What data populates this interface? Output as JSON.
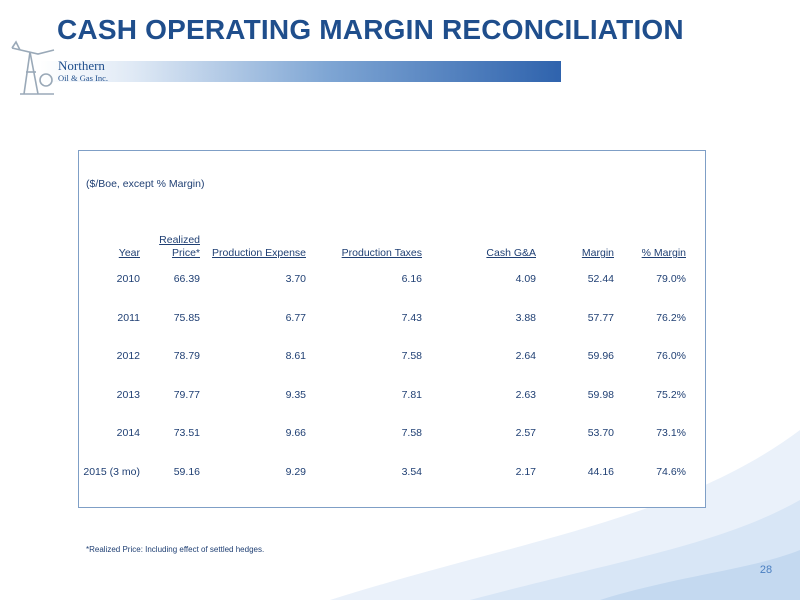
{
  "title": "CASH OPERATING MARGIN RECONCILIATION",
  "logo": {
    "name_line": "Northern",
    "sub_line": "Oil & Gas Inc."
  },
  "units_note": "($/Boe, except % Margin)",
  "table": {
    "headers": [
      "Year",
      "Realized",
      "Price*",
      "Production Expense",
      "Production Taxes",
      "Cash G&A",
      "Margin",
      "% Margin"
    ],
    "rows": [
      [
        "2010",
        "66.39",
        "3.70",
        "6.16",
        "4.09",
        "52.44",
        "79.0%"
      ],
      [
        "2011",
        "75.85",
        "6.77",
        "7.43",
        "3.88",
        "57.77",
        "76.2%"
      ],
      [
        "2012",
        "78.79",
        "8.61",
        "7.58",
        "2.64",
        "59.96",
        "76.0%"
      ],
      [
        "2013",
        "79.77",
        "9.35",
        "7.81",
        "2.63",
        "59.98",
        "75.2%"
      ],
      [
        "2014",
        "73.51",
        "9.66",
        "7.58",
        "2.57",
        "53.70",
        "73.1%"
      ],
      [
        "2015 (3 mo)",
        "59.16",
        "9.29",
        "3.54",
        "2.17",
        "44.16",
        "74.6%"
      ]
    ]
  },
  "footnote": "*Realized Price: Including effect of settled hedges.",
  "page_number": "28",
  "colors": {
    "title": "#1f4e8c",
    "table_text": "#1f3f73",
    "accent": "#4a7fc1"
  }
}
